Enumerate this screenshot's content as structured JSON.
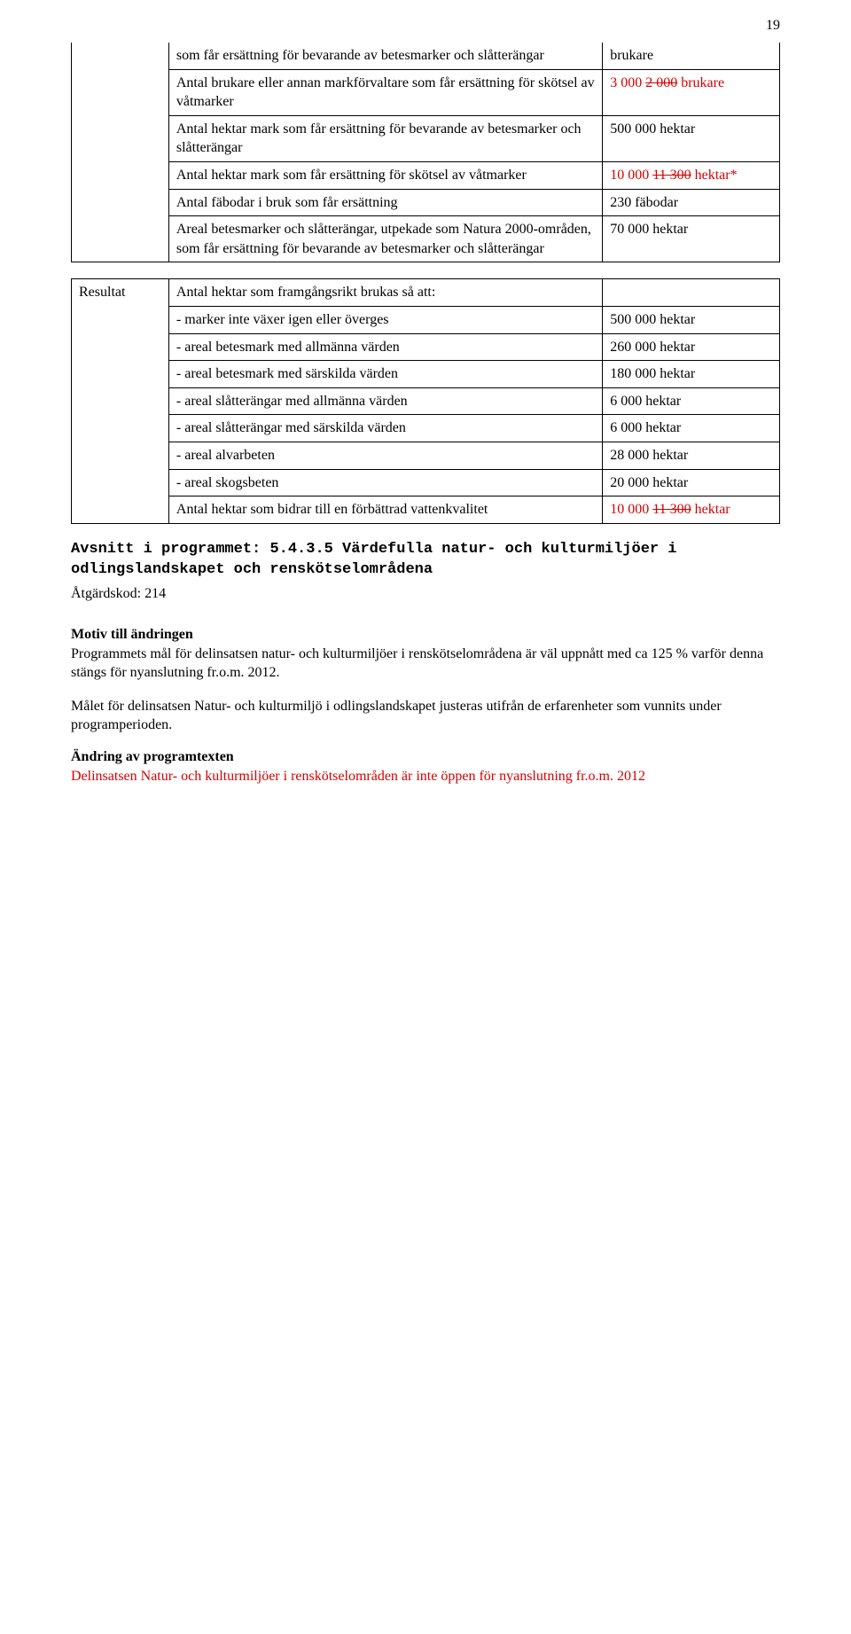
{
  "page_number": "19",
  "table1": {
    "rows": [
      {
        "desc": "som får ersättning för bevarande av betesmarker och slåtterängar",
        "val_plain": "brukare"
      },
      {
        "desc": "Antal brukare eller annan markförvaltare som får ersättning för skötsel av våtmarker",
        "val_pre": "3 000 ",
        "val_strike": "2 000",
        "val_post": " brukare",
        "red": true
      },
      {
        "desc": "Antal hektar mark som får ersättning för bevarande av betesmarker och slåtterängar",
        "val_plain": "500 000 hektar"
      },
      {
        "desc": "Antal hektar mark som får ersättning för skötsel av våtmarker",
        "val_pre": "10 000 ",
        "val_strike": "11 300",
        "val_post": " hektar*",
        "red": true
      },
      {
        "desc": "Antal fäbodar i bruk som får ersättning",
        "val_plain": "230 fäbodar"
      },
      {
        "desc": "Areal betesmarker och slåtterängar, utpekade som Natura 2000-områden, som får ersättning för bevarande av betesmarker och slåtterängar",
        "val_plain": "70 000 hektar"
      }
    ]
  },
  "table2": {
    "label": "Resultat",
    "rows": [
      {
        "desc": "Antal hektar som framgångsrikt brukas så att:",
        "val_plain": ""
      },
      {
        "desc": "- marker inte växer igen eller överges",
        "val_plain": "500 000 hektar"
      },
      {
        "desc": "- areal betesmark med allmänna värden",
        "val_plain": "260 000 hektar"
      },
      {
        "desc": "- areal betesmark med särskilda värden",
        "val_plain": "180 000 hektar"
      },
      {
        "desc": "- areal slåtterängar med allmänna värden",
        "val_plain": "6 000 hektar"
      },
      {
        "desc": "- areal slåtterängar med särskilda värden",
        "val_plain": "6 000 hektar"
      },
      {
        "desc": "- areal alvarbeten",
        "val_plain": "28 000 hektar"
      },
      {
        "desc": "- areal skogsbeten",
        "val_plain": "20 000 hektar"
      },
      {
        "desc": "Antal hektar som bidrar till en förbättrad vattenkvalitet",
        "val_pre": "10 000 ",
        "val_strike": "11 300",
        "val_post": " hektar",
        "red": true
      }
    ]
  },
  "section": {
    "heading_prefix": "Avsnitt i programmet: ",
    "heading_title": "5.4.3.5 Värdefulla natur- och kulturmiljöer i odlingslandskapet och renskötselområdena",
    "code_line": "Åtgärdskod: 214",
    "motiv_heading": "Motiv till ändringen",
    "motiv_para": "Programmets mål för delinsatsen natur- och kulturmiljöer i renskötselområdena är väl uppnått med ca 125 % varför denna stängs för nyanslutning fr.o.m. 2012.",
    "mal_para": "Målet för delinsatsen Natur- och kulturmiljö i odlingslandskapet justeras utifrån de erfarenheter som vunnits under programperioden.",
    "andr_heading": "Ändring av programtexten",
    "andr_para": "Delinsatsen Natur- och kulturmiljöer i renskötselområden är inte öppen för nyanslutning fr.o.m. 2012"
  },
  "styling": {
    "text_color": "#000000",
    "red_color": "#d40000",
    "background": "#ffffff",
    "body_fontsize": 16,
    "mono_fontsize": 17,
    "col_widths": {
      "label": 110,
      "desc": 490,
      "val": 200
    }
  }
}
